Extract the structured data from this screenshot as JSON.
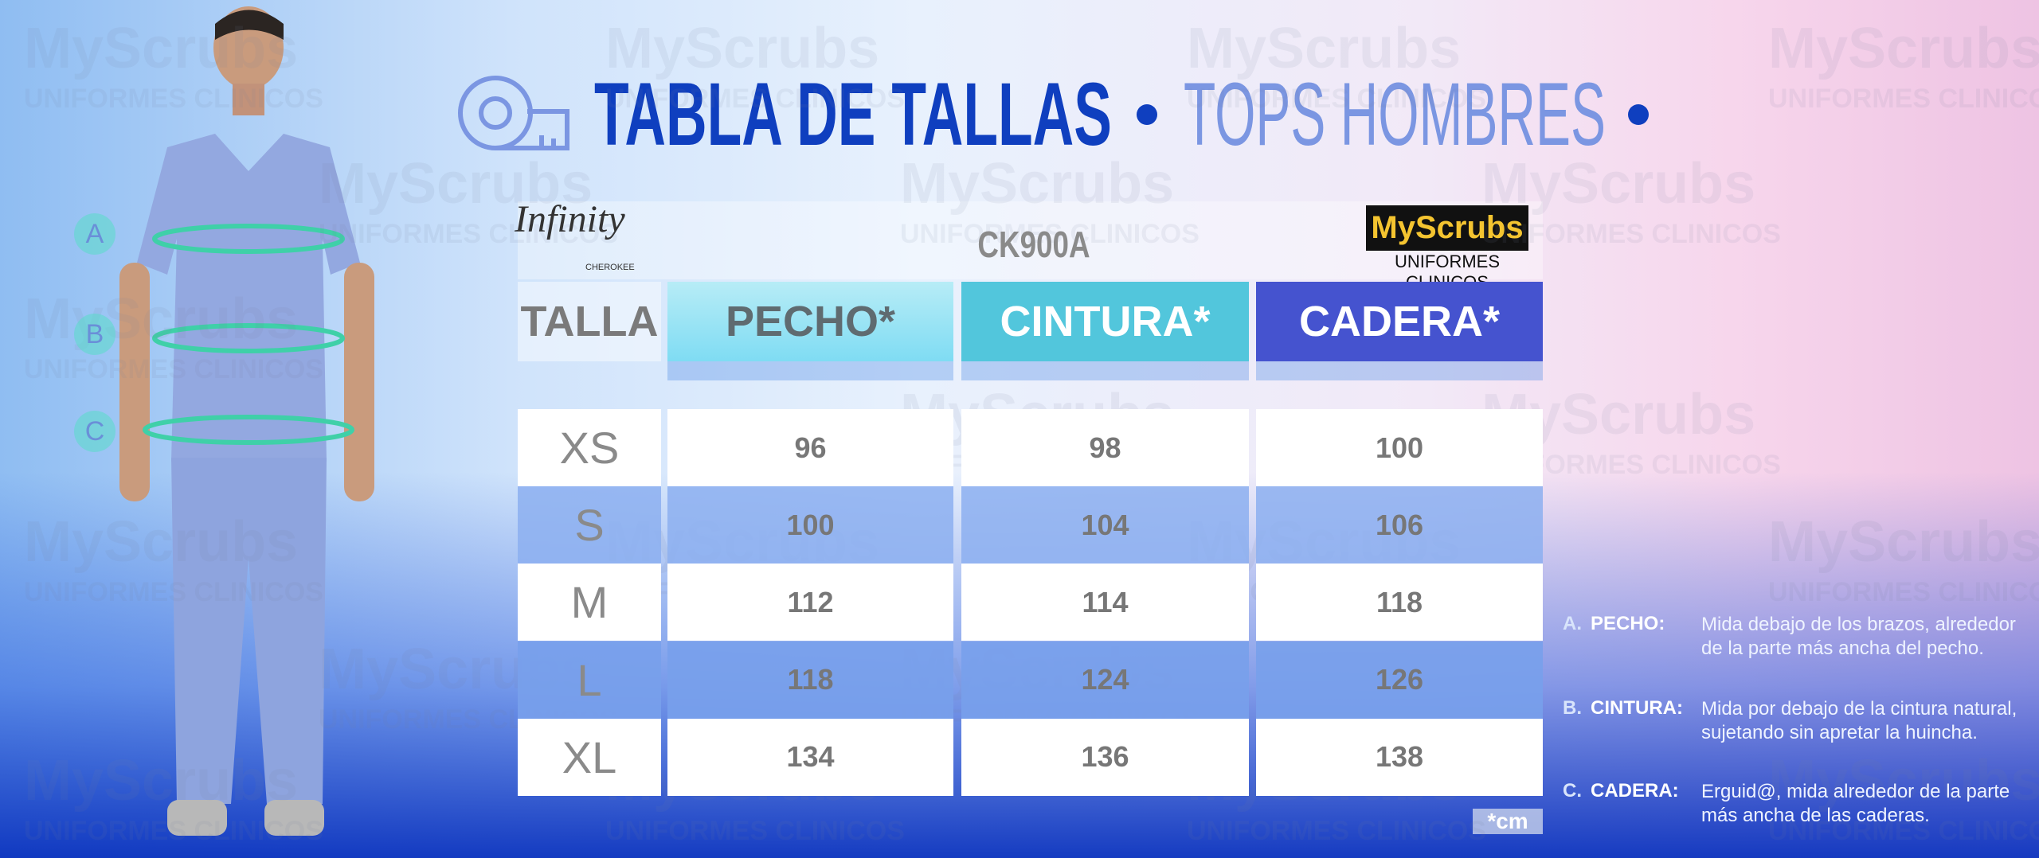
{
  "header": {
    "title": "TABLA DE TALLAS",
    "subtitle": "TOPS HOMBRES"
  },
  "brand": {
    "line": "Infinity",
    "maker": "CHEROKEE",
    "model": "CK900A",
    "logo": "MyScrubs",
    "logo_sub": "UNIFORMES CLINICOS"
  },
  "markers": [
    "A",
    "B",
    "C"
  ],
  "table": {
    "columns": [
      "TALLA",
      "PECHO*",
      "CINTURA*",
      "CADERA*"
    ],
    "rows": [
      [
        "XS",
        "96",
        "98",
        "100"
      ],
      [
        "S",
        "100",
        "104",
        "106"
      ],
      [
        "M",
        "112",
        "114",
        "118"
      ],
      [
        "L",
        "118",
        "124",
        "126"
      ],
      [
        "XL",
        "134",
        "136",
        "138"
      ]
    ],
    "note": "*cm"
  },
  "legend": [
    {
      "key": "A.",
      "label": "PECHO:",
      "text": "Mida debajo de los brazos, alrededor de la parte más ancha del pecho."
    },
    {
      "key": "B.",
      "label": "CINTURA:",
      "text": "Mida por debajo de la cintura natural, sujetando sin apretar la huincha."
    },
    {
      "key": "C.",
      "label": "CADERA:",
      "text": "Erguid@, mida alrededor de la parte más ancha de las caderas."
    }
  ]
}
